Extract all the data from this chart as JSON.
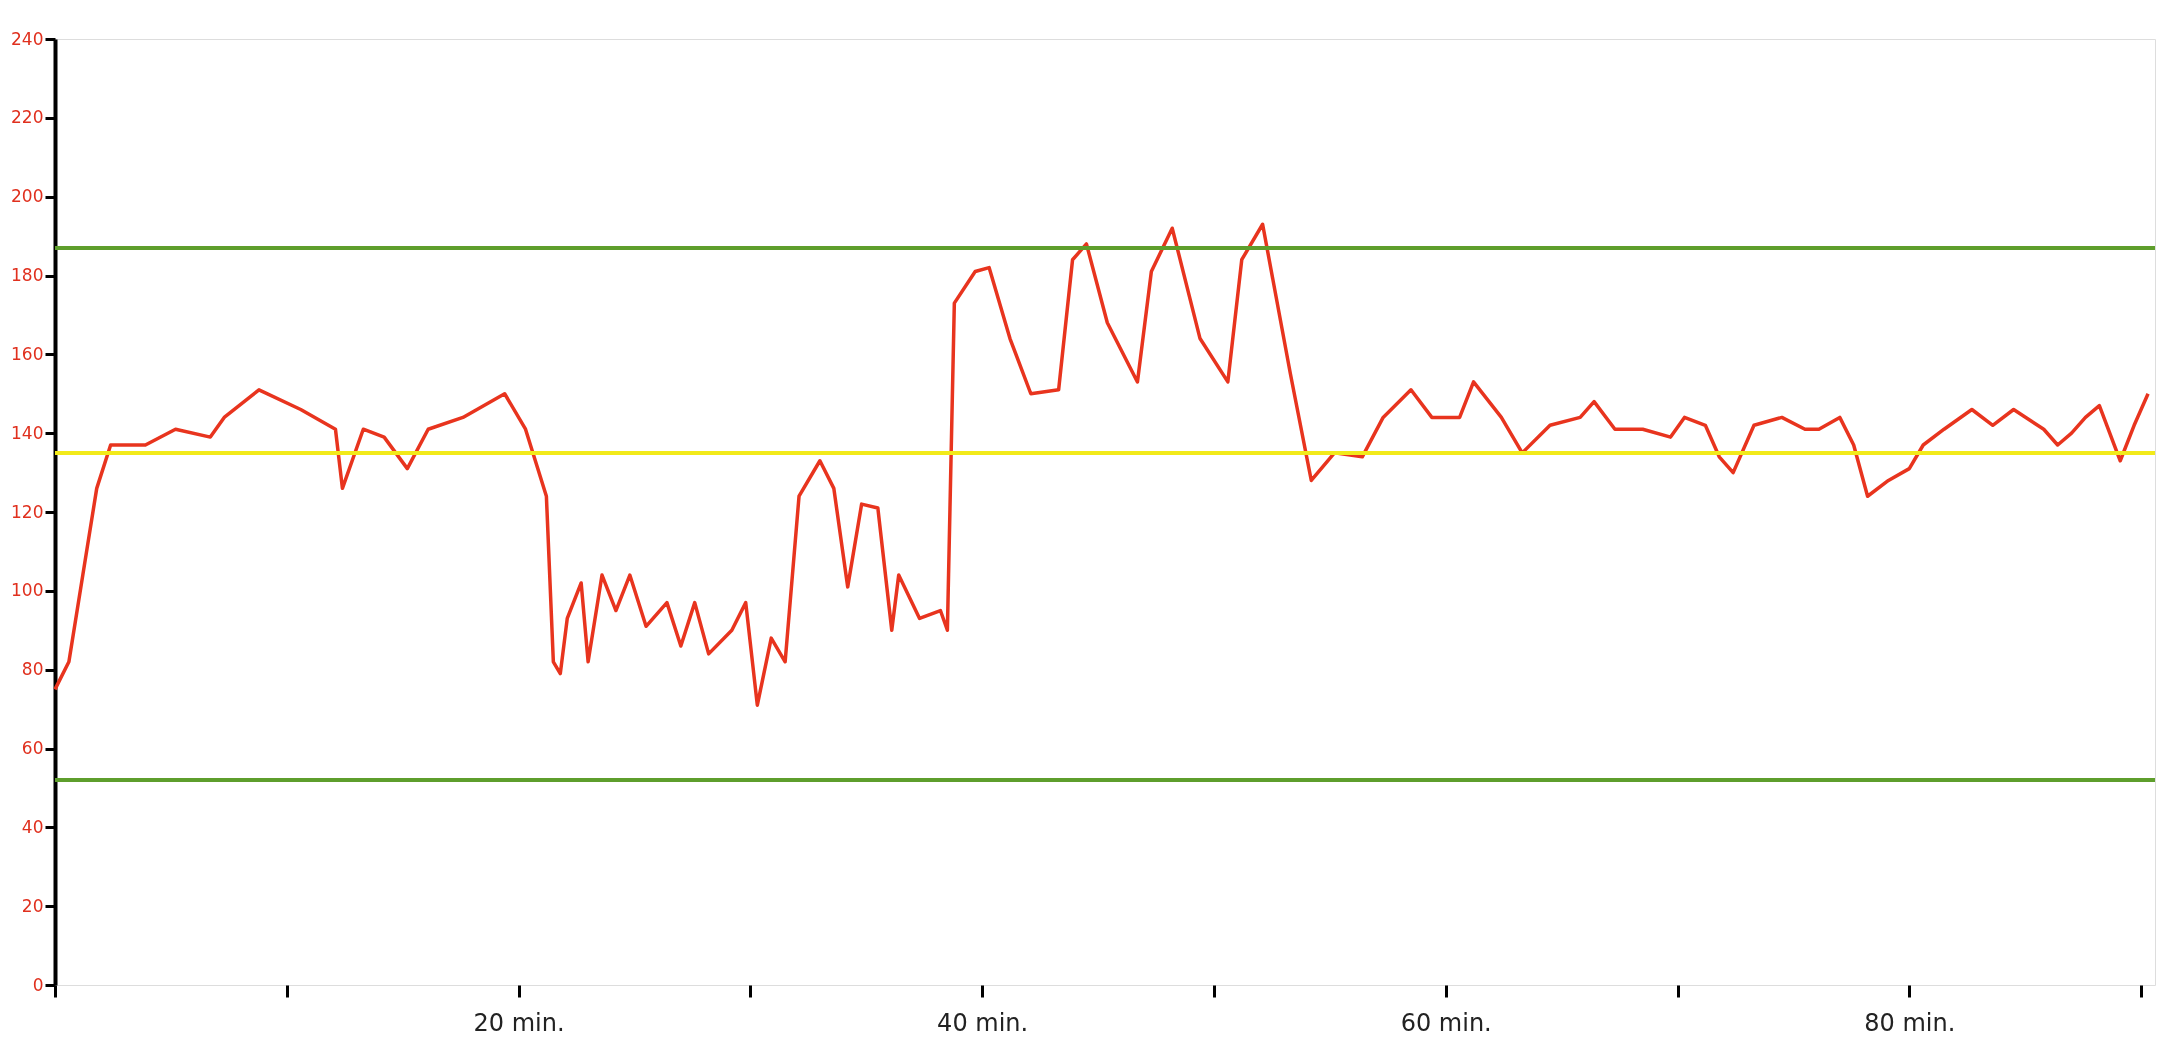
{
  "chart_data": {
    "type": "line",
    "xlim": [
      0,
      90.6
    ],
    "ylim": [
      0,
      240
    ],
    "xticks": [
      {
        "value": 0,
        "label": null
      },
      {
        "value": 10,
        "label": null
      },
      {
        "value": 20,
        "label": "20 min."
      },
      {
        "value": 30,
        "label": null
      },
      {
        "value": 40,
        "label": "40 min."
      },
      {
        "value": 50,
        "label": null
      },
      {
        "value": 60,
        "label": "60 min."
      },
      {
        "value": 70,
        "label": null
      },
      {
        "value": 80,
        "label": "80 min."
      },
      {
        "value": 90,
        "label": null
      }
    ],
    "yticks": [
      0,
      20,
      40,
      60,
      80,
      100,
      120,
      140,
      160,
      180,
      200,
      220,
      240
    ],
    "grid": false,
    "marker": "none",
    "line_style": "solid",
    "ref_lines": [
      {
        "axis": "y",
        "value": 187,
        "color": "#5e9e2c"
      },
      {
        "axis": "y",
        "value": 52,
        "color": "#5e9e2c"
      },
      {
        "axis": "y",
        "value": 135,
        "color": "#f2ea1a"
      }
    ],
    "series": [
      {
        "color": "#e8341e",
        "x": [
          0,
          0.6,
          1.2,
          1.8,
          2.4,
          3.9,
          5.2,
          6.7,
          7.3,
          8.8,
          10.6,
          12.1,
          12.4,
          13.3,
          14.2,
          15.2,
          16.1,
          17.6,
          19.4,
          20.3,
          21.2,
          21.5,
          21.8,
          22.1,
          22.7,
          23.0,
          23.6,
          24.2,
          24.8,
          25.5,
          26.4,
          27.0,
          27.6,
          28.2,
          29.2,
          29.8,
          30.3,
          30.9,
          31.5,
          32.1,
          33.0,
          33.6,
          34.2,
          34.8,
          35.5,
          36.1,
          36.4,
          37.3,
          38.2,
          38.5,
          38.8,
          39.7,
          40.3,
          41.2,
          42.1,
          43.3,
          43.9,
          44.5,
          45.4,
          46.7,
          47.3,
          48.2,
          49.4,
          50.6,
          51.2,
          52.1,
          53.3,
          54.2,
          55.2,
          56.4,
          57.3,
          58.5,
          59.4,
          60.6,
          61.2,
          62.4,
          63.3,
          64.5,
          65.8,
          66.4,
          67.3,
          68.5,
          69.7,
          70.3,
          71.2,
          71.8,
          72.4,
          73.3,
          74.5,
          75.5,
          76.1,
          77.0,
          77.6,
          78.2,
          79.1,
          80.0,
          80.6,
          81.5,
          82.7,
          83.6,
          84.5,
          85.8,
          86.4,
          87.0,
          87.6,
          88.2,
          89.1,
          89.7,
          90.3
        ],
        "values": [
          75,
          82,
          104,
          126,
          137,
          137,
          141,
          139,
          144,
          151,
          146,
          141,
          126,
          141,
          139,
          131,
          141,
          144,
          150,
          141,
          124,
          82,
          79,
          93,
          102,
          82,
          104,
          95,
          104,
          91,
          97,
          86,
          97,
          84,
          90,
          97,
          71,
          88,
          82,
          124,
          133,
          126,
          101,
          122,
          121,
          90,
          104,
          93,
          95,
          90,
          173,
          181,
          182,
          164,
          150,
          151,
          184,
          188,
          168,
          153,
          181,
          192,
          164,
          153,
          184,
          193,
          155,
          128,
          135,
          134,
          144,
          151,
          144,
          144,
          153,
          144,
          135,
          142,
          144,
          148,
          141,
          141,
          139,
          144,
          142,
          134,
          130,
          142,
          144,
          141,
          141,
          144,
          137,
          124,
          128,
          131,
          137,
          141,
          146,
          142,
          146,
          141,
          137,
          140,
          144,
          147,
          133,
          142,
          150
        ]
      }
    ]
  }
}
